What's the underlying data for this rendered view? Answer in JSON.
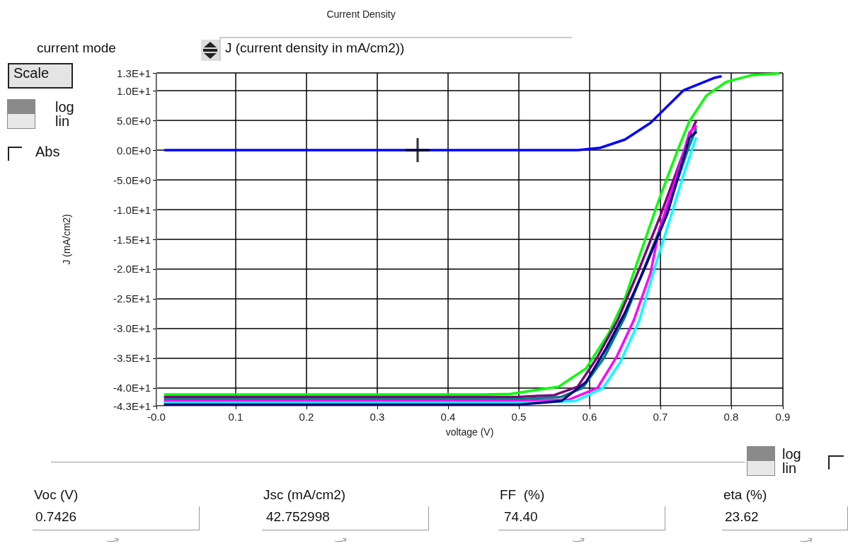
{
  "chart_data": {
    "type": "line",
    "title": "Current Density",
    "xlabel": "voltage (V)",
    "ylabel": "J (mA/cm2)",
    "xlim": [
      -0.012,
      0.873
    ],
    "xticks": [
      {
        "value": -0.012,
        "label": "-0.0"
      },
      0.1,
      0.2,
      0.3,
      0.4,
      0.5,
      0.6,
      0.7,
      0.8,
      {
        "value": 0.873,
        "label": "0.9"
      }
    ],
    "ylim": [
      -43,
      13
    ],
    "yticks": [
      {
        "value": -43,
        "label": "-4.3E+1"
      },
      {
        "value": -40,
        "label": "-4.0E+1"
      },
      {
        "value": -35,
        "label": "-3.5E+1"
      },
      {
        "value": -30,
        "label": "-3.0E+1"
      },
      {
        "value": -25,
        "label": "-2.5E+1"
      },
      {
        "value": -20,
        "label": "-2.0E+1"
      },
      {
        "value": -15,
        "label": "-1.5E+1"
      },
      {
        "value": -10,
        "label": "-1.0E+1"
      },
      {
        "value": -5,
        "label": "-5.0E+0"
      },
      {
        "value": 0,
        "label": "0.0E+0"
      },
      {
        "value": 5,
        "label": "5.0E+0"
      },
      {
        "value": 10,
        "label": "1.0E+1"
      },
      {
        "value": 13,
        "label": "1.3E+1"
      }
    ],
    "grid": true,
    "marker": "none",
    "line_style": "solid",
    "series": [
      {
        "color": "#00ff00",
        "x": [
          0,
          0.45,
          0.488,
          0.556,
          0.595,
          0.627,
          0.65,
          0.666,
          0.698,
          0.725,
          0.741,
          0.765,
          0.793,
          0.828,
          0.866
        ],
        "values": [
          -41.1,
          -41.1,
          -41.0,
          -39.8,
          -36.7,
          -30.8,
          -24.9,
          -19.3,
          -8.3,
          0.2,
          4.9,
          9.2,
          11.5,
          12.6,
          12.9
        ]
      },
      {
        "color": "#800080",
        "x": [
          0,
          0.5,
          0.55,
          0.583,
          0.61,
          0.64,
          0.67,
          0.7,
          0.72,
          0.743,
          0.75
        ],
        "values": [
          -41.5,
          -41.5,
          -41.2,
          -39.8,
          -35,
          -28.5,
          -20,
          -11,
          -4.5,
          3,
          4.8
        ]
      },
      {
        "color": "#008080",
        "x": [
          0,
          0.5,
          0.56,
          0.59,
          0.62,
          0.65,
          0.68,
          0.71,
          0.74,
          0.75
        ],
        "values": [
          -41.9,
          -41.9,
          -41.5,
          -40,
          -35,
          -28,
          -19,
          -10,
          0.5,
          3.5
        ]
      },
      {
        "color": "#ff00ff",
        "x": [
          0,
          0.5,
          0.57,
          0.611,
          0.638,
          0.662,
          0.686,
          0.698,
          0.72,
          0.741,
          0.75
        ],
        "values": [
          -42.2,
          -42.2,
          -42,
          -40,
          -34.8,
          -28.7,
          -20.7,
          -13.5,
          -5.5,
          3,
          4
        ]
      },
      {
        "color": "#00ffff",
        "x": [
          0,
          0.5,
          0.58,
          0.619,
          0.643,
          0.67,
          0.694,
          0.715,
          0.733,
          0.75
        ],
        "values": [
          -42.5,
          -42.5,
          -42.2,
          -40,
          -35.7,
          -28.7,
          -19,
          -11,
          -4,
          2
        ]
      },
      {
        "color": "#000080",
        "x": [
          0,
          0.5,
          0.56,
          0.595,
          0.623,
          0.65,
          0.678,
          0.71,
          0.741,
          0.75
        ],
        "values": [
          -42.8,
          -42.8,
          -42.2,
          -39,
          -33.4,
          -27.3,
          -19.8,
          -10.6,
          2.1,
          3
        ]
      },
      {
        "color": "#0000ff",
        "x": [
          0,
          0.583,
          0.615,
          0.65,
          0.686,
          0.733,
          0.777,
          0.785
        ],
        "values": [
          0,
          0,
          0.4,
          1.8,
          4.6,
          10.1,
          12.2,
          12.4
        ]
      },
      {
        "type": "scatter",
        "marker": "cross",
        "color": "#000000",
        "x": [
          0.357
        ],
        "values": [
          0
        ]
      }
    ],
    "annotations": [
      "current mode",
      "J (current density in mA/cm2))",
      "Scale",
      "log",
      "lin",
      "Abs",
      "log",
      "lin",
      "Voc (V)",
      "0.7426",
      "Jsc (mA/cm2)",
      "42.752998",
      "FF  (%)",
      "74.40",
      "eta (%)",
      "23.62"
    ]
  }
}
